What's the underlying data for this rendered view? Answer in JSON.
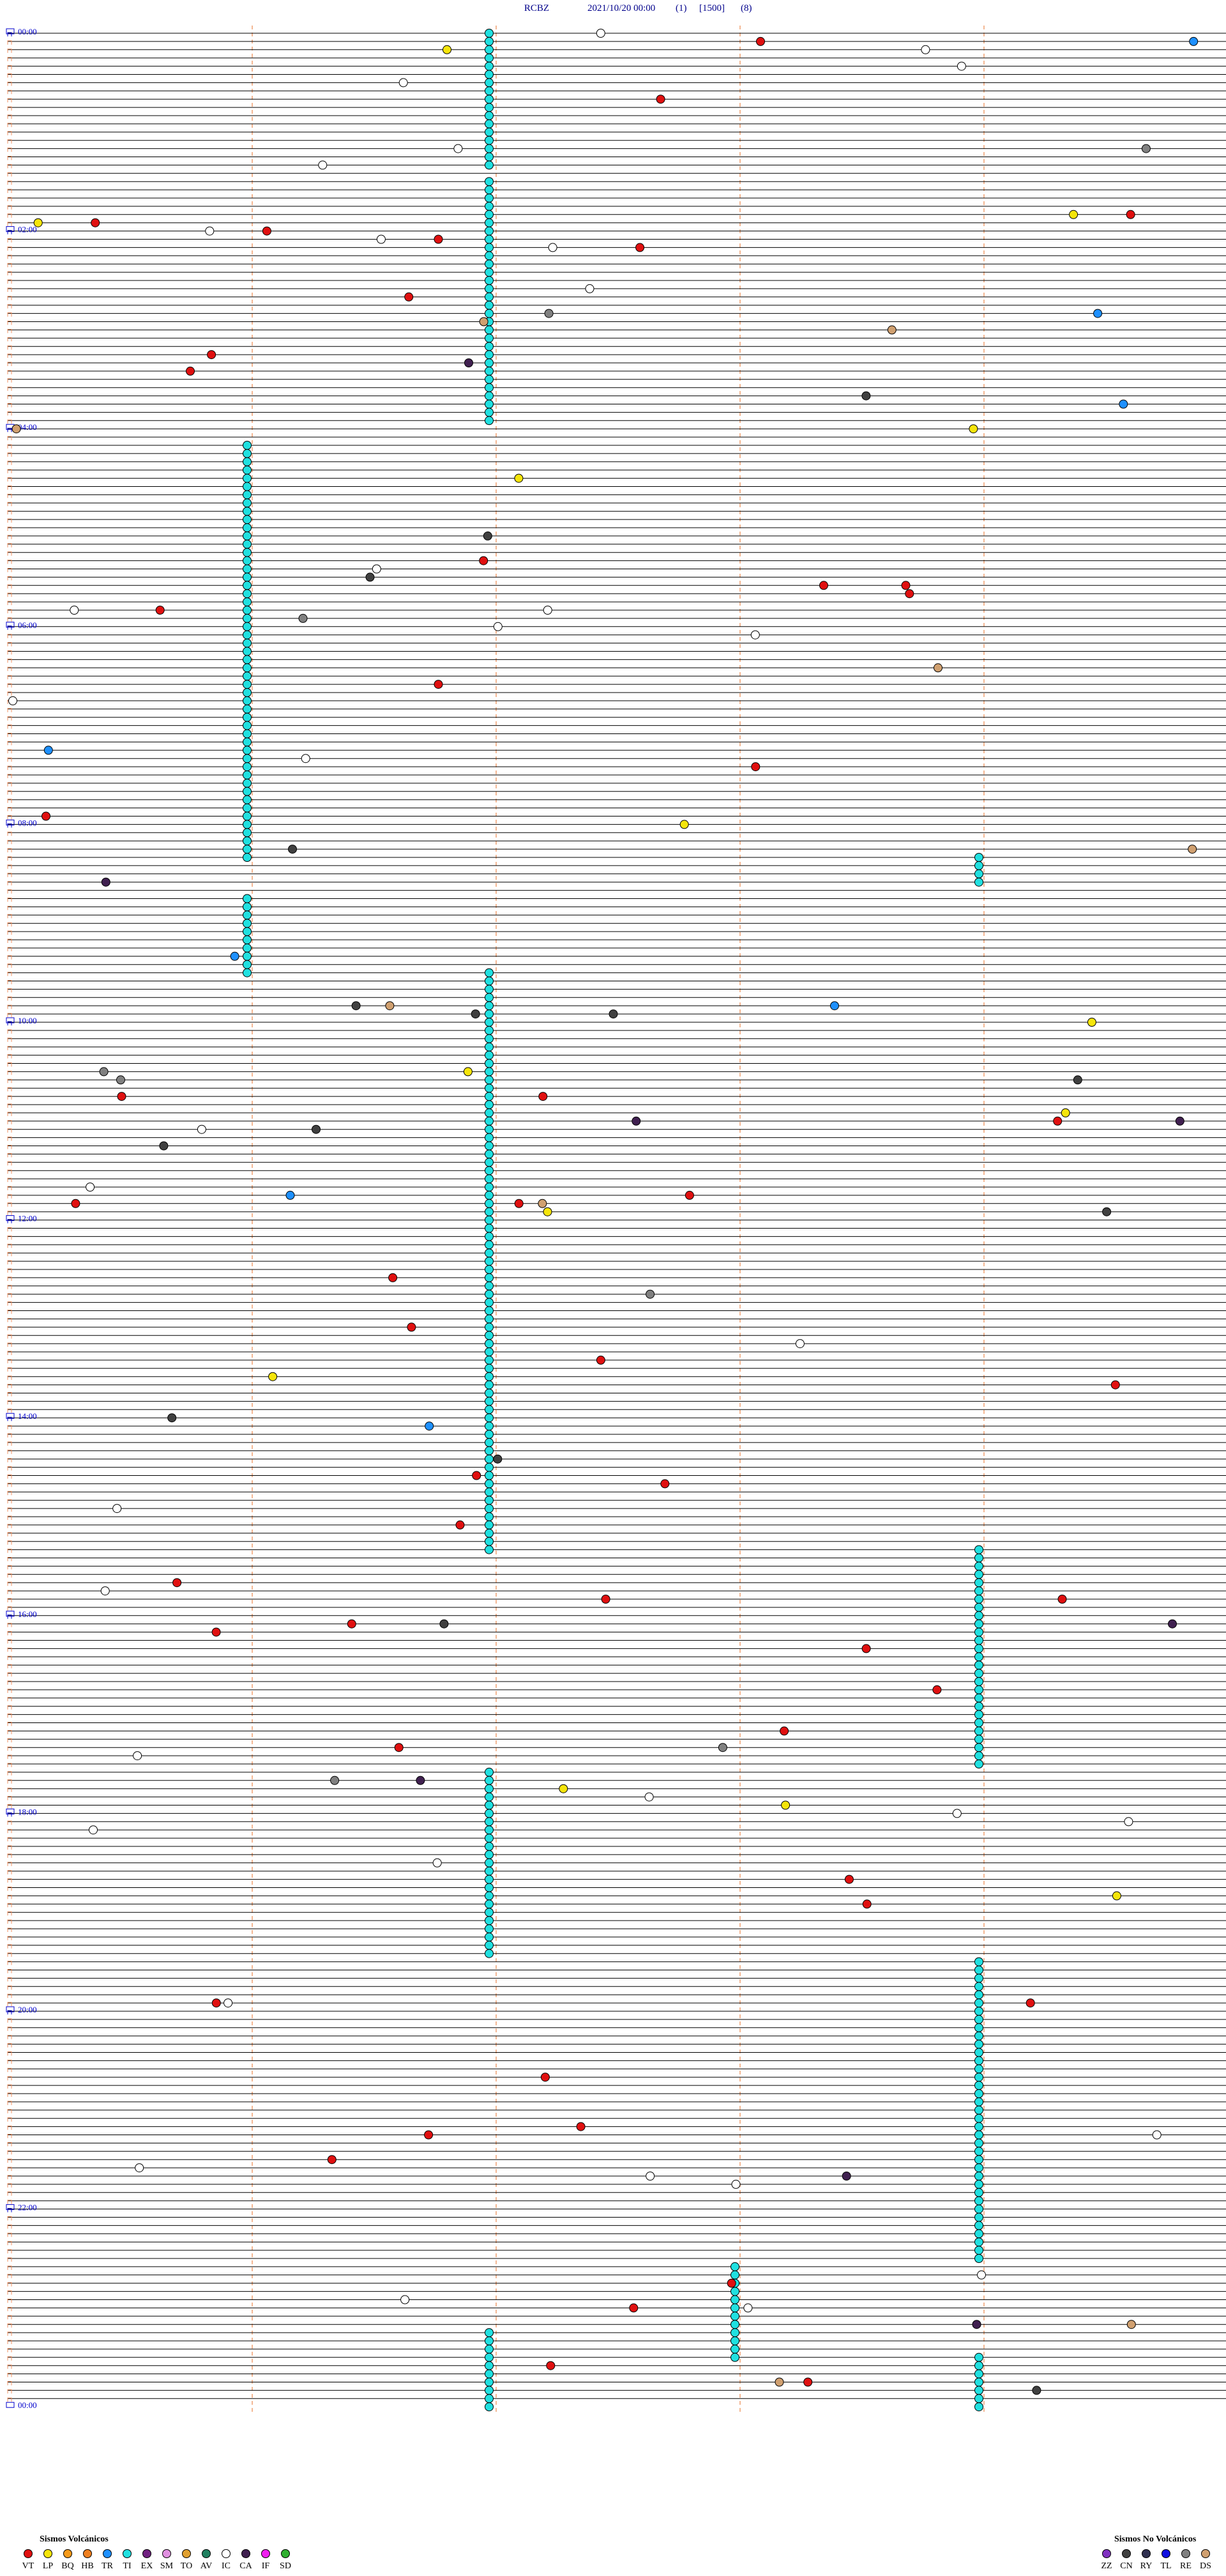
{
  "header": {
    "station": "RCBZ",
    "datetime": "2021/10/20 00:00",
    "p1": "(1)",
    "p2": "[1500]",
    "p3": "(8)"
  },
  "time_labels": [
    "00:00",
    "02:00",
    "04:00",
    "06:00",
    "08:00",
    "10:00",
    "12:00",
    "14:00",
    "16:00",
    "18:00",
    "20:00",
    "22:00",
    "00:00"
  ],
  "legend": {
    "volcanic": {
      "title": "Sismos Volcánicos",
      "items": [
        {
          "code": "VT",
          "color": "#e01010"
        },
        {
          "code": "LP",
          "color": "#f5e50a"
        },
        {
          "code": "BQ",
          "color": "#f59a1a"
        },
        {
          "code": "HB",
          "color": "#f08020"
        },
        {
          "code": "TR",
          "color": "#1e90ff"
        },
        {
          "code": "TI",
          "color": "#20e0e0"
        },
        {
          "code": "EX",
          "color": "#702080"
        },
        {
          "code": "SM",
          "color": "#e090e0"
        },
        {
          "code": "TO",
          "color": "#e0a030"
        },
        {
          "code": "AV",
          "color": "#208060"
        },
        {
          "code": "IC",
          "color": "#ffffff"
        },
        {
          "code": "CA",
          "color": "#402050"
        },
        {
          "code": "IF",
          "color": "#f020f0"
        },
        {
          "code": "SD",
          "color": "#30b030"
        }
      ]
    },
    "non_volcanic": {
      "title": "Sismos No Volcánicos",
      "items": [
        {
          "code": "ZZ",
          "color": "#8030c0"
        },
        {
          "code": "CN",
          "color": "#404040"
        },
        {
          "code": "RY",
          "color": "#303050"
        },
        {
          "code": "TL",
          "color": "#1010e0"
        },
        {
          "code": "RE",
          "color": "#808080"
        },
        {
          "code": "DS",
          "color": "#d0a070"
        }
      ]
    }
  }
}
